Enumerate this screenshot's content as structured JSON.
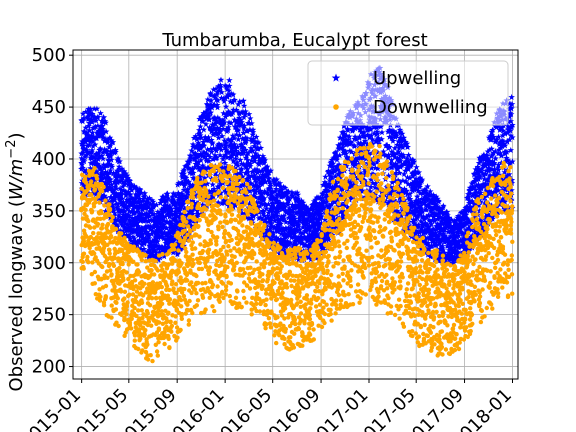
{
  "chart_data": {
    "type": "scatter",
    "title": "Tumbarumba, Eucalypt forest",
    "ylabel_main": "Observed longwave (",
    "ylabel_unit": "W/m",
    "ylabel_exp": "−2",
    "ylabel_close": ")",
    "xlabel": "",
    "x_tick_labels": [
      "2015-01",
      "2015-05",
      "2015-09",
      "2016-01",
      "2016-05",
      "2016-09",
      "2017-01",
      "2017-05",
      "2017-09",
      "2018-01"
    ],
    "x_ticks": [
      "2015-01-01",
      "2015-05-01",
      "2015-09-01",
      "2016-01-01",
      "2016-05-01",
      "2016-09-01",
      "2017-01-01",
      "2017-05-01",
      "2017-09-01",
      "2018-01-01"
    ],
    "xlim": [
      "2014-12-10",
      "2018-01-15"
    ],
    "y_ticks": [
      200,
      250,
      300,
      350,
      400,
      450,
      500
    ],
    "ylim": [
      188,
      505
    ],
    "grid": true,
    "legend_position": "top-right",
    "series": [
      {
        "name": "Upwelling",
        "marker": "star",
        "color": "#0000ff",
        "envelope": {
          "dates": [
            "2014-12-31",
            "2015-02-01",
            "2015-03-01",
            "2015-04-01",
            "2015-05-01",
            "2015-06-01",
            "2015-07-01",
            "2015-08-01",
            "2015-09-01",
            "2015-10-01",
            "2015-11-01",
            "2015-12-01",
            "2016-01-01",
            "2016-02-01",
            "2016-03-01",
            "2016-04-01",
            "2016-05-01",
            "2016-06-01",
            "2016-07-01",
            "2016-08-01",
            "2016-09-01",
            "2016-10-01",
            "2016-11-01",
            "2016-12-01",
            "2017-01-01",
            "2017-02-01",
            "2017-03-01",
            "2017-04-01",
            "2017-05-01",
            "2017-06-01",
            "2017-07-01",
            "2017-08-01",
            "2017-09-01",
            "2017-10-01",
            "2017-11-01",
            "2017-12-01",
            "2017-12-31"
          ],
          "max": [
            445,
            452,
            440,
            405,
            380,
            370,
            360,
            365,
            375,
            405,
            445,
            470,
            480,
            468,
            445,
            410,
            385,
            372,
            368,
            352,
            370,
            405,
            440,
            455,
            480,
            490,
            455,
            420,
            395,
            372,
            360,
            340,
            355,
            395,
            420,
            455,
            460
          ],
          "min": [
            360,
            368,
            350,
            330,
            315,
            310,
            300,
            305,
            308,
            320,
            345,
            360,
            355,
            352,
            340,
            325,
            312,
            305,
            302,
            300,
            305,
            320,
            340,
            360,
            360,
            355,
            342,
            328,
            318,
            305,
            300,
            298,
            304,
            320,
            335,
            352,
            345
          ]
        }
      },
      {
        "name": "Downwelling",
        "marker": "circle",
        "color": "#ffa500",
        "envelope": {
          "dates": [
            "2014-12-31",
            "2015-02-01",
            "2015-03-01",
            "2015-04-01",
            "2015-05-01",
            "2015-06-01",
            "2015-07-01",
            "2015-08-01",
            "2015-09-01",
            "2015-10-01",
            "2015-11-01",
            "2015-12-01",
            "2016-01-01",
            "2016-02-01",
            "2016-03-01",
            "2016-04-01",
            "2016-05-01",
            "2016-06-01",
            "2016-07-01",
            "2016-08-01",
            "2016-09-01",
            "2016-10-01",
            "2016-11-01",
            "2016-12-01",
            "2017-01-01",
            "2017-02-01",
            "2017-03-01",
            "2017-04-01",
            "2017-05-01",
            "2017-06-01",
            "2017-07-01",
            "2017-08-01",
            "2017-09-01",
            "2017-10-01",
            "2017-11-01",
            "2017-12-01",
            "2017-12-31"
          ],
          "max": [
            385,
            392,
            370,
            335,
            320,
            310,
            305,
            310,
            330,
            365,
            390,
            395,
            395,
            390,
            375,
            345,
            320,
            315,
            315,
            310,
            330,
            380,
            400,
            410,
            415,
            412,
            390,
            360,
            330,
            320,
            310,
            300,
            320,
            360,
            375,
            398,
            392
          ],
          "min": [
            295,
            270,
            250,
            235,
            222,
            208,
            205,
            210,
            225,
            240,
            250,
            250,
            265,
            255,
            250,
            242,
            225,
            215,
            218,
            220,
            235,
            245,
            250,
            260,
            265,
            255,
            240,
            232,
            220,
            210,
            205,
            210,
            222,
            238,
            250,
            265,
            262
          ]
        }
      }
    ]
  }
}
